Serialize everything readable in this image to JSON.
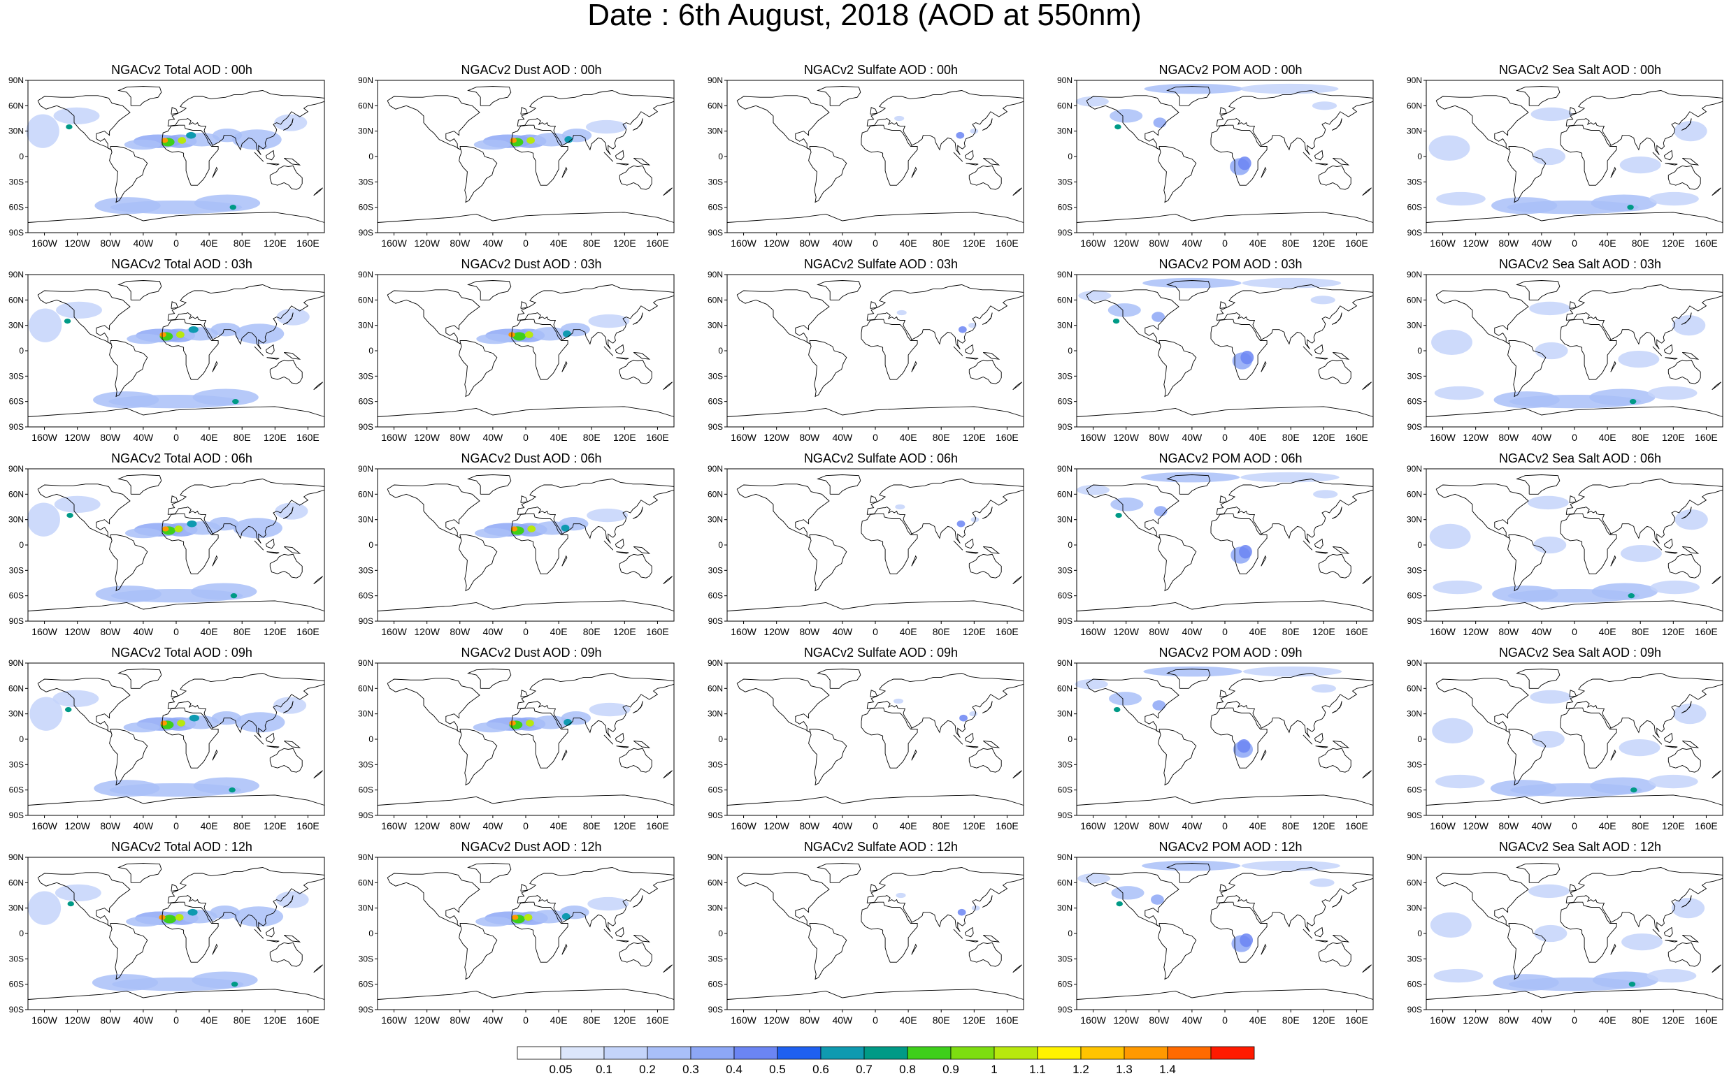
{
  "title": "Date : 6th August, 2018 (AOD at 550nm)",
  "panels": [
    [
      "NGACv2 Total AOD : 00h",
      "NGACv2 Dust AOD : 00h",
      "NGACv2 Sulfate AOD : 00h",
      "NGACv2 POM AOD : 00h",
      "NGACv2 Sea Salt AOD : 00h"
    ],
    [
      "NGACv2 Total AOD : 03h",
      "NGACv2 Dust AOD : 03h",
      "NGACv2 Sulfate AOD : 03h",
      "NGACv2 POM AOD : 03h",
      "NGACv2 Sea Salt AOD : 03h"
    ],
    [
      "NGACv2 Total AOD : 06h",
      "NGACv2 Dust AOD : 06h",
      "NGACv2 Sulfate AOD : 06h",
      "NGACv2 POM AOD : 06h",
      "NGACv2 Sea Salt AOD : 06h"
    ],
    [
      "NGACv2 Total AOD : 09h",
      "NGACv2 Dust AOD : 09h",
      "NGACv2 Sulfate AOD : 09h",
      "NGACv2 POM AOD : 09h",
      "NGACv2 Sea Salt  AOD : 09h"
    ],
    [
      "NGACv2 Total AOD  : 12h",
      "NGACv2 Dust AOD : 12h",
      "NGACv2 Sulfate AOD : 12h",
      "NGACv2 POM  AOD : 12h",
      "NGACv2 Sea Salt  AOD : 12h"
    ]
  ],
  "lat_labels": [
    "90N",
    "60N",
    "30N",
    "0",
    "30S",
    "60S",
    "90S"
  ],
  "lon_labels": [
    "160W",
    "120W",
    "80W",
    "40W",
    "0",
    "40E",
    "80E",
    "120E",
    "160E"
  ],
  "colorbar": {
    "labels": [
      "0.05",
      "0.1",
      "0.2",
      "0.3",
      "0.4",
      "0.5",
      "0.6",
      "0.7",
      "0.8",
      "0.9",
      "1",
      "1.1",
      "1.2",
      "1.3",
      "1.4"
    ],
    "colors": [
      "#ffffff",
      "#dce6fb",
      "#c4d4fa",
      "#a9bff8",
      "#8da7f6",
      "#6b85f3",
      "#1f60f0",
      "#0f9ab0",
      "#009a86",
      "#3ecf1a",
      "#7ddd10",
      "#b8e80e",
      "#fff200",
      "#ffc400",
      "#ff9900",
      "#ff6a00",
      "#ff1a00"
    ]
  },
  "map_style": {
    "land_outline": "#000000",
    "aod_low": "#c4d4fa",
    "aod_mid": "#6b85f3",
    "aod_high": "#ff1a00"
  }
}
